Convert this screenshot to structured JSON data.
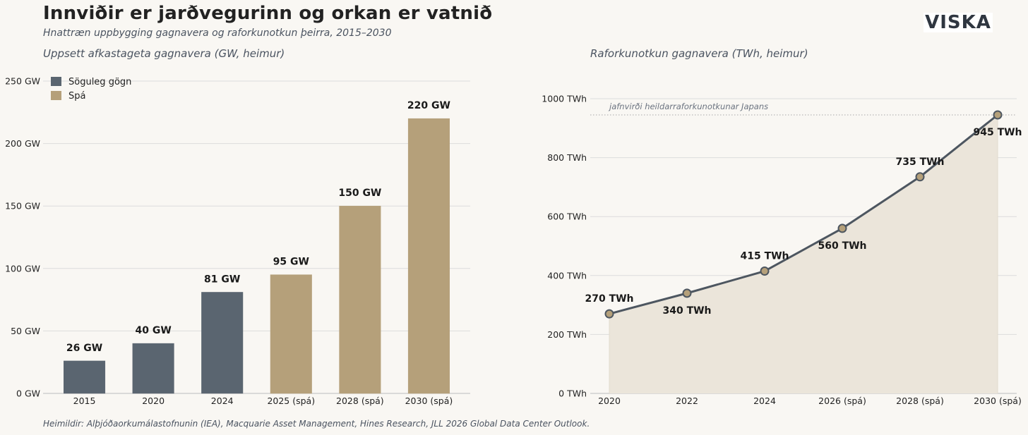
{
  "header": {
    "title": "Innviðir er jarðvegurinn og orkan er vatnið",
    "subtitle": "Hnattræn uppbygging gagnavera og raforkunotkun þeirra, 2015–2030",
    "logo": "VISKA"
  },
  "source": "Heimildir: Alþjóðaorkumálastofnunin (IEA), Macquarie Asset Management, Hines Research, JLL 2026 Global Data Center Outlook.",
  "colors": {
    "historical": "#5a6570",
    "forecast": "#b5a07a",
    "line": "#4d5660",
    "area": "#ebe5da"
  },
  "chart_data": [
    {
      "type": "bar",
      "title": "Uppsett afkastageta gagnavera (GW, heimur)",
      "categories": [
        "2015",
        "2020",
        "2024",
        "2025 (spá)",
        "2028 (spá)",
        "2030 (spá)"
      ],
      "values": [
        26,
        40,
        81,
        95,
        150,
        220
      ],
      "labels": [
        "26 GW",
        "40 GW",
        "81 GW",
        "95 GW",
        "150 GW",
        "220 GW"
      ],
      "series_type": [
        "historical",
        "historical",
        "historical",
        "forecast",
        "forecast",
        "forecast"
      ],
      "legend": [
        {
          "key": "historical",
          "label": "Söguleg gögn"
        },
        {
          "key": "forecast",
          "label": "Spá"
        }
      ],
      "legend_position": "top-left",
      "ylim": [
        0,
        250
      ],
      "yticks": [
        0,
        50,
        100,
        150,
        200,
        250
      ],
      "ytick_labels": [
        "0 GW",
        "50 GW",
        "100 GW",
        "150 GW",
        "200 GW",
        "250 GW"
      ],
      "grid": true
    },
    {
      "type": "line",
      "title": "Raforkunotkun gagnavera (TWh, heimur)",
      "categories": [
        "2020",
        "2022",
        "2024",
        "2026 (spá)",
        "2028 (spá)",
        "2030 (spá)"
      ],
      "values": [
        270,
        340,
        415,
        560,
        735,
        945
      ],
      "labels": [
        "270 TWh",
        "340 TWh",
        "415 TWh",
        "560 TWh",
        "735 TWh",
        "945 TWh"
      ],
      "label_side": [
        "above",
        "below",
        "above",
        "below",
        "above",
        "below"
      ],
      "ylim": [
        0,
        1000
      ],
      "yticks": [
        0,
        200,
        400,
        600,
        800,
        1000
      ],
      "ytick_labels": [
        "0 TWh",
        "200 TWh",
        "400 TWh",
        "600 TWh",
        "800 TWh",
        "1000 TWh"
      ],
      "reference": {
        "value": 945,
        "label": "jafnvirði heildarraforkunotkunar Japans"
      },
      "area_fill": true,
      "grid": true
    }
  ]
}
